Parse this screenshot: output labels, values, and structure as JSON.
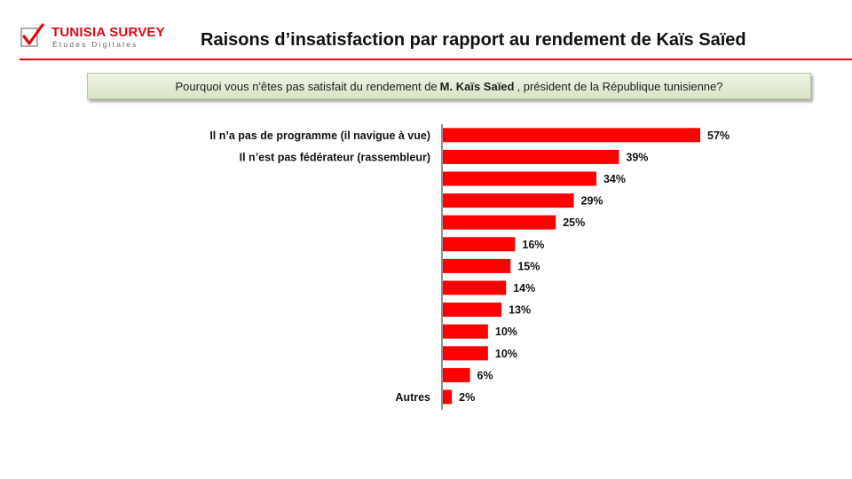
{
  "brand": {
    "name": "TUNISIA SURVEY",
    "tagline": "Études Digitales",
    "accent_color": "#e30613"
  },
  "title": "Raisons d’insatisfaction par rapport au rendement  de Kaïs Saïed",
  "question": {
    "before": "Pourquoi  vous n'êtes pas satisfait du rendement  de",
    "bold": "M. Kaïs Saïed",
    "after": ", président de la République tunisienne?"
  },
  "chart_data": {
    "type": "bar",
    "orientation": "horizontal",
    "bar_color": "#ff0000",
    "categories": [
      "Il n’a pas de programme (il navigue à vue)",
      "Il n’est pas fédérateur (rassembleur)",
      "",
      "",
      "",
      "",
      "",
      "",
      "",
      "",
      "",
      "",
      "Autres"
    ],
    "values": [
      57,
      39,
      34,
      29,
      25,
      16,
      15,
      14,
      13,
      10,
      10,
      6,
      2
    ],
    "value_labels": [
      "57%",
      "39%",
      "34%",
      "29%",
      "25%",
      "16%",
      "15%",
      "14%",
      "13%",
      "10%",
      "10%",
      "6%",
      "2%"
    ],
    "xlim": [
      0,
      100
    ]
  }
}
